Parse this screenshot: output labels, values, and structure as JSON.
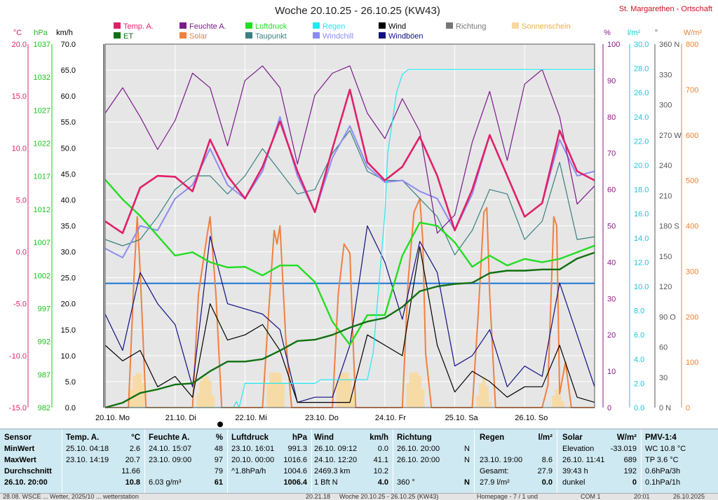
{
  "chart_data": {
    "type": "line",
    "title": "Woche 20.10.25 - 26.10.25 (KW43)",
    "station": "St. Margarethen - Ortschaft",
    "x_ticks": [
      "20.10. Mo",
      "21.10. Di",
      "22.10. Mi",
      "23.10. Do",
      "24.10. Fr",
      "25.10. Sa",
      "26.10. So"
    ],
    "x_range_hours": [
      0,
      168
    ],
    "axes": {
      "temp": {
        "unit": "°C",
        "range": [
          -15,
          25
        ],
        "ticks": [
          "20.0",
          "15.0",
          "10.0",
          "5.0",
          "0.0",
          "-5.0",
          "-10.0",
          "-15.0"
        ],
        "color": "#e0206a"
      },
      "press": {
        "unit": "hPa",
        "range": [
          982,
          1037
        ],
        "ticks": [
          "1037",
          "1032",
          "1027",
          "1022",
          "1017",
          "1012",
          "1007",
          "1002",
          "997",
          "992",
          "987",
          "982"
        ],
        "color": "#1fbf1f"
      },
      "wind": {
        "unit": "km/h",
        "range": [
          0,
          70
        ],
        "ticks": [
          "70.0",
          "65.0",
          "60.0",
          "55.0",
          "50.0",
          "45.0",
          "40.0",
          "35.0",
          "30.0",
          "25.0",
          "20.0",
          "15.0",
          "10.0",
          "5.0",
          "0.0"
        ],
        "color": "#000000"
      },
      "hum": {
        "unit": "%",
        "range": [
          0,
          100
        ],
        "ticks": [
          "100",
          "90",
          "80",
          "70",
          "60",
          "50",
          "40",
          "30",
          "20",
          "10",
          "0"
        ],
        "color": "#8a1a8a"
      },
      "rain": {
        "unit": "l/m²",
        "range": [
          0,
          30
        ],
        "ticks": [
          "30.0",
          "28.0",
          "26.0",
          "24.0",
          "22.0",
          "20.0",
          "18.0",
          "16.0",
          "14.0",
          "12.0",
          "10.0",
          "8.0",
          "6.0",
          "4.0",
          "2.0",
          "0.0"
        ],
        "color": "#1ac8d8"
      },
      "dir": {
        "unit": "°",
        "ticks": [
          "360 N",
          "330",
          "300",
          "270 W",
          "240",
          "210",
          "180 S",
          "150",
          "120",
          "90 O",
          "60",
          "30",
          "0 N"
        ],
        "color": "#555555"
      },
      "solar": {
        "unit": "W/m²",
        "range": [
          0,
          800
        ],
        "ticks": [
          "800",
          "700",
          "600",
          "500",
          "400",
          "300",
          "200",
          "100",
          "0"
        ],
        "color": "#f08030"
      }
    },
    "legend": [
      {
        "name": "Temp. A.",
        "color": "#e0206a"
      },
      {
        "name": "Feuchte A.",
        "color": "#7a1a8a"
      },
      {
        "name": "Luftdruck",
        "color": "#22dd22"
      },
      {
        "name": "Regen",
        "color": "#22e8f0"
      },
      {
        "name": "Wind",
        "color": "#000000"
      },
      {
        "name": "Richtung",
        "color": "#777777"
      },
      {
        "name": "Sonnenschein",
        "color": "#f7d9a0"
      },
      {
        "name": "ET",
        "color": "#107010"
      },
      {
        "name": "Solar",
        "color": "#f08040"
      },
      {
        "name": "Taupunkt",
        "color": "#3a8080"
      },
      {
        "name": "Windchill",
        "color": "#8c8cf0"
      },
      {
        "name": "Windböen",
        "color": "#101080"
      }
    ],
    "series": [
      {
        "name": "Temp. A.",
        "axis": "temp",
        "t": [
          0,
          6,
          12,
          18,
          24,
          30,
          36,
          42,
          48,
          54,
          60,
          66,
          72,
          78,
          84,
          90,
          96,
          102,
          108,
          114,
          120,
          126,
          132,
          138,
          144,
          150,
          156,
          162,
          168
        ],
        "values": [
          5.5,
          4.2,
          9.2,
          10.5,
          10.4,
          8.8,
          14.5,
          10.5,
          8.0,
          11.5,
          16.5,
          11.0,
          6.5,
          13.5,
          20.0,
          12.0,
          10.0,
          11.5,
          14.8,
          10.5,
          4.5,
          9.0,
          15.0,
          10.5,
          6.0,
          7.5,
          15.5,
          11.0,
          10.0
        ]
      },
      {
        "name": "Feuchte A.",
        "axis": "hum",
        "t": [
          0,
          6,
          12,
          18,
          24,
          30,
          36,
          42,
          48,
          54,
          60,
          66,
          72,
          78,
          84,
          90,
          96,
          102,
          108,
          114,
          120,
          126,
          132,
          138,
          144,
          150,
          156,
          162,
          168
        ],
        "values": [
          81,
          88,
          80,
          71,
          79,
          92,
          88,
          72,
          90,
          94,
          88,
          67,
          86,
          92,
          94,
          81,
          74,
          85,
          76,
          48,
          53,
          73,
          87,
          68,
          89,
          93,
          80,
          56,
          61
        ]
      },
      {
        "name": "Taupunkt",
        "axis": "temp",
        "t": [
          0,
          6,
          12,
          18,
          24,
          30,
          36,
          42,
          48,
          54,
          60,
          66,
          72,
          78,
          84,
          90,
          96,
          102,
          108,
          114,
          120,
          126,
          132,
          138,
          144,
          150,
          156,
          162,
          168
        ],
        "values": [
          3.5,
          2.8,
          3.5,
          6.0,
          9.0,
          10.5,
          10.5,
          8.5,
          10.5,
          13.5,
          11.0,
          8.5,
          9.0,
          13.0,
          15.5,
          11.0,
          10.0,
          10.0,
          8.0,
          6.0,
          1.8,
          4.5,
          9.0,
          8.5,
          3.5,
          5.5,
          12.0,
          3.5,
          3.8
        ]
      },
      {
        "name": "Windchill",
        "axis": "temp",
        "t": [
          0,
          6,
          12,
          18,
          24,
          30,
          36,
          42,
          48,
          54,
          60,
          66,
          72,
          78,
          84,
          90,
          96,
          102,
          108,
          114,
          120,
          126,
          132,
          138,
          144,
          150,
          156,
          162,
          168
        ],
        "values": [
          2.5,
          1.5,
          5.0,
          4.5,
          8.0,
          9.5,
          13.5,
          9.5,
          8.0,
          11.0,
          17.0,
          10.5,
          6.5,
          12.5,
          16.0,
          11.5,
          9.8,
          10.0,
          8.8,
          8.0,
          4.5,
          8.5,
          15.0,
          10.5,
          6.0,
          7.5,
          14.5,
          10.5,
          11.0
        ]
      },
      {
        "name": "Luftdruck",
        "axis": "press",
        "t": [
          0,
          6,
          12,
          18,
          24,
          30,
          36,
          42,
          48,
          54,
          60,
          66,
          72,
          78,
          84,
          90,
          96,
          102,
          108,
          114,
          120,
          126,
          132,
          138,
          144,
          150,
          156,
          162,
          168
        ],
        "values": [
          1016.5,
          1013.5,
          1011.0,
          1008.0,
          1005.0,
          1005.5,
          1004.0,
          1003.2,
          1003.3,
          1002.0,
          1003.5,
          1003.5,
          1001.0,
          995.0,
          991.5,
          996.0,
          996.0,
          1005.0,
          1010.0,
          1009.5,
          1007.0,
          1003.3,
          1005.0,
          1003.5,
          1004.5,
          1004.0,
          1004.5,
          1005.5,
          1006.5
        ]
      },
      {
        "name": "Wind",
        "axis": "wind",
        "t": [
          0,
          6,
          12,
          18,
          24,
          30,
          36,
          42,
          48,
          54,
          60,
          66,
          72,
          78,
          84,
          90,
          96,
          102,
          108,
          114,
          120,
          126,
          132,
          138,
          144,
          150,
          156,
          162,
          168
        ],
        "values": [
          12,
          9,
          11,
          4,
          6,
          2,
          20,
          13,
          14,
          16,
          11,
          1,
          1,
          1,
          1,
          14,
          12,
          10,
          31,
          12,
          3,
          7,
          5,
          2,
          4,
          4,
          12,
          2,
          1
        ]
      },
      {
        "name": "Windböen",
        "axis": "wind",
        "t": [
          0,
          6,
          12,
          18,
          24,
          30,
          36,
          42,
          48,
          54,
          60,
          66,
          72,
          78,
          84,
          90,
          96,
          102,
          108,
          114,
          120,
          126,
          132,
          138,
          144,
          150,
          156,
          162,
          168
        ],
        "values": [
          18,
          11,
          26,
          20,
          16,
          4,
          33,
          20,
          19,
          18,
          15,
          1,
          2,
          2,
          12,
          35,
          28,
          17,
          32,
          26,
          8,
          10,
          15,
          4,
          8,
          6,
          24,
          14,
          4
        ]
      },
      {
        "name": "ET",
        "axis": "rain",
        "t": [
          0,
          6,
          12,
          18,
          24,
          30,
          36,
          42,
          48,
          54,
          60,
          66,
          72,
          78,
          84,
          90,
          96,
          102,
          108,
          114,
          120,
          126,
          132,
          138,
          144,
          150,
          156,
          162,
          168
        ],
        "values": [
          0,
          0.4,
          1.2,
          1.5,
          1.9,
          2.0,
          3.0,
          3.8,
          3.8,
          4.0,
          4.7,
          5.5,
          5.6,
          6.0,
          6.6,
          7.1,
          7.4,
          8.3,
          9.6,
          10.0,
          10.2,
          10.3,
          11.1,
          11.3,
          11.3,
          11.4,
          11.4,
          12.3,
          12.8
        ]
      },
      {
        "name": "Regen",
        "axis": "rain",
        "t": [
          0,
          44,
          45,
          46,
          48,
          72,
          74,
          76,
          84,
          90,
          92,
          96,
          97,
          100,
          102,
          104,
          106,
          168
        ],
        "values": [
          0,
          0,
          0.5,
          0,
          2.0,
          2.0,
          2.3,
          2.3,
          2.3,
          2.3,
          4.5,
          16.0,
          21.0,
          26.0,
          27.5,
          27.9,
          27.9,
          27.9
        ]
      },
      {
        "name": "Solar",
        "axis": "solar",
        "t": [
          0,
          8,
          10,
          11,
          12,
          14,
          30,
          32,
          35,
          36,
          38,
          40,
          54,
          56,
          58,
          59,
          60,
          62,
          64,
          78,
          80,
          82,
          84,
          85,
          86,
          88,
          102,
          104,
          106,
          108,
          109,
          110,
          112,
          126,
          128,
          130,
          131,
          132,
          134,
          150,
          152,
          154,
          155,
          156,
          158,
          160,
          168
        ],
        "values": [
          0,
          0,
          300,
          420,
          300,
          0,
          0,
          250,
          380,
          420,
          250,
          0,
          0,
          200,
          390,
          360,
          400,
          150,
          0,
          0,
          250,
          360,
          340,
          160,
          0,
          0,
          0,
          280,
          430,
          460,
          370,
          120,
          0,
          0,
          200,
          430,
          440,
          250,
          0,
          0,
          50,
          420,
          400,
          30,
          100,
          0,
          0
        ]
      },
      {
        "name": "Sonnenschein",
        "axis": "rain",
        "t": [
          9,
          10,
          11,
          12,
          13,
          32,
          33,
          34,
          35,
          36,
          37,
          56,
          57,
          58,
          59,
          60,
          61,
          80,
          81,
          82,
          83,
          84,
          85,
          104,
          105,
          106,
          107,
          108,
          109,
          128,
          129,
          130,
          131,
          132,
          154,
          155,
          156,
          157
        ],
        "values": [
          1.5,
          2.6,
          2.9,
          2.8,
          2.0,
          1.2,
          2.2,
          2.5,
          2.6,
          2.2,
          1.0,
          2.0,
          2.9,
          2.9,
          2.9,
          2.8,
          2.0,
          2.2,
          2.9,
          2.9,
          2.9,
          2.4,
          1.0,
          2.0,
          2.9,
          2.9,
          2.9,
          2.6,
          1.5,
          1.0,
          2.0,
          2.5,
          1.8,
          0.5,
          1.0,
          1.5,
          1.0,
          0.5
        ]
      },
      {
        "name": "Richtung",
        "axis": "dir",
        "t": [
          0,
          168
        ],
        "values": [
          123,
          123
        ]
      }
    ]
  },
  "panel": {
    "sensor": {
      "title": "Sensor",
      "rows": [
        "MinWert",
        "MaxWert",
        "Durchschnitt",
        "26.10. 20:00"
      ]
    },
    "temp": {
      "title": "Temp. A.",
      "unit": "°C",
      "rows": [
        [
          "25.10.  04:18",
          "2.6"
        ],
        [
          "23.10.  14:19",
          "20.7"
        ],
        [
          "",
          "11.66"
        ],
        [
          "",
          "10.8"
        ]
      ]
    },
    "hum": {
      "title": "Feuchte A.",
      "unit": "%",
      "rows": [
        [
          "24.10.  15:07",
          "48"
        ],
        [
          "23.10.  09:00",
          "97"
        ],
        [
          "",
          "79"
        ],
        [
          "6.03 g/m³",
          "61"
        ]
      ]
    },
    "press": {
      "title": "Luftdruck",
      "unit": "hPa",
      "rows": [
        [
          "23.10.  16:01",
          "991.3"
        ],
        [
          "20.10.  00:00",
          "1016.6"
        ],
        [
          "^1.8hPa/h",
          "1004.6"
        ],
        [
          "",
          "1006.4"
        ]
      ]
    },
    "wind": {
      "title": "Wind",
      "unit": "km/h",
      "rows": [
        [
          "26.10.  09:12",
          "0.0"
        ],
        [
          "24.10.  12:20",
          "41.1"
        ],
        [
          "2469.3 km",
          "10.2"
        ],
        [
          "1 Bft N",
          "4.0"
        ]
      ]
    },
    "dir": {
      "title": "Richtung",
      "rows": [
        [
          "26.10.  20:00",
          "N"
        ],
        [
          "26.10.  20:00",
          "N"
        ],
        [
          "",
          ""
        ],
        [
          "360 °",
          "N"
        ]
      ]
    },
    "rain": {
      "title": "Regen",
      "unit": "l/m²",
      "rows": [
        [
          "",
          ""
        ],
        [
          "23.10.  19:00",
          "8.6"
        ],
        [
          "Gesamt:",
          "27.9"
        ],
        [
          "27.9 l/m²",
          "0.0"
        ]
      ]
    },
    "solar": {
      "title": "Solar",
      "unit": "W/m²",
      "rows": [
        [
          "Elevation",
          "-33.019"
        ],
        [
          "26.10.  11:41",
          "689"
        ],
        [
          "39:43 h",
          "192"
        ],
        [
          "dunkel",
          "0"
        ]
      ]
    },
    "pmv": {
      "title": "PMV-1:4",
      "rows": [
        "WC 10.8 °C",
        "TP 3.6 °C",
        "0.6hPa/3h",
        "0.1hPa/1h"
      ]
    }
  },
  "statusbar": {
    "left": "28.08.  WSCE  ...  Wetter, 2025/10  ...  wetterstation",
    "mid1": "20.21.18",
    "mid2": "Woche 20.10.25 - 26.10.25 (KW43)",
    "mid3": "Homepage - 7 / 1 und",
    "right1": "COM 1",
    "right2": "20:01",
    "right3": "26.10.2025"
  }
}
